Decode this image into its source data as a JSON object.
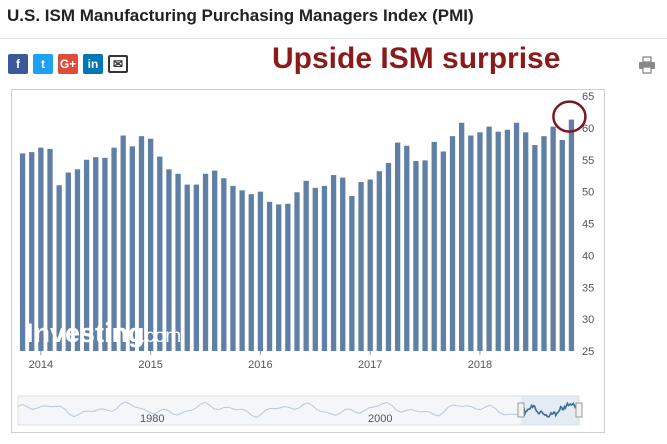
{
  "page": {
    "title": "U.S. ISM Manufacturing Purchasing Managers Index (PMI)",
    "annotation": "Upside ISM surprise"
  },
  "share": [
    {
      "name": "facebook",
      "glyph": "f",
      "color": "#3b5998"
    },
    {
      "name": "twitter",
      "glyph": "t",
      "color": "#1da1f2"
    },
    {
      "name": "google-plus",
      "glyph": "G+",
      "color": "#dd4b39"
    },
    {
      "name": "linkedin",
      "glyph": "in",
      "color": "#0077b5"
    },
    {
      "name": "email",
      "glyph": "✉",
      "color": "#ffffff"
    }
  ],
  "icons": {
    "print": "printer-icon"
  },
  "watermark": {
    "main": "Investing",
    "suffix": ".com"
  },
  "navigator": {
    "labels": [
      "1980",
      "2000"
    ]
  },
  "colors": {
    "bar": "#5f7fa4",
    "highlight": "#7a1820",
    "annotation": "#8b1a1a"
  },
  "chart_data": {
    "type": "bar",
    "title": "",
    "xlabel": "",
    "ylabel": "",
    "ylim": [
      25,
      65
    ],
    "yticks": [
      25,
      30,
      35,
      40,
      45,
      50,
      55,
      60,
      65
    ],
    "x_labels": [
      "2014",
      "2015",
      "2016",
      "2017",
      "2018"
    ],
    "x_label_index": [
      2,
      14,
      26,
      38,
      50
    ],
    "values": [
      56.0,
      56.2,
      56.9,
      56.7,
      51.0,
      53.0,
      53.5,
      55.0,
      55.4,
      55.3,
      56.9,
      58.8,
      57.1,
      58.7,
      58.3,
      55.5,
      53.5,
      52.8,
      51.1,
      51.1,
      52.8,
      53.3,
      52.1,
      50.9,
      50.2,
      49.6,
      50.0,
      48.4,
      48.0,
      48.1,
      49.9,
      51.7,
      50.6,
      50.9,
      52.6,
      52.2,
      49.3,
      51.5,
      51.9,
      53.2,
      54.5,
      57.7,
      57.2,
      54.8,
      54.9,
      57.8,
      56.3,
      58.7,
      60.8,
      58.8,
      59.3,
      60.2,
      59.4,
      59.7,
      60.8,
      59.3,
      57.3,
      58.7,
      60.2,
      58.1,
      61.3
    ],
    "highlighted_index": 60,
    "grid": false,
    "legend": "none"
  }
}
